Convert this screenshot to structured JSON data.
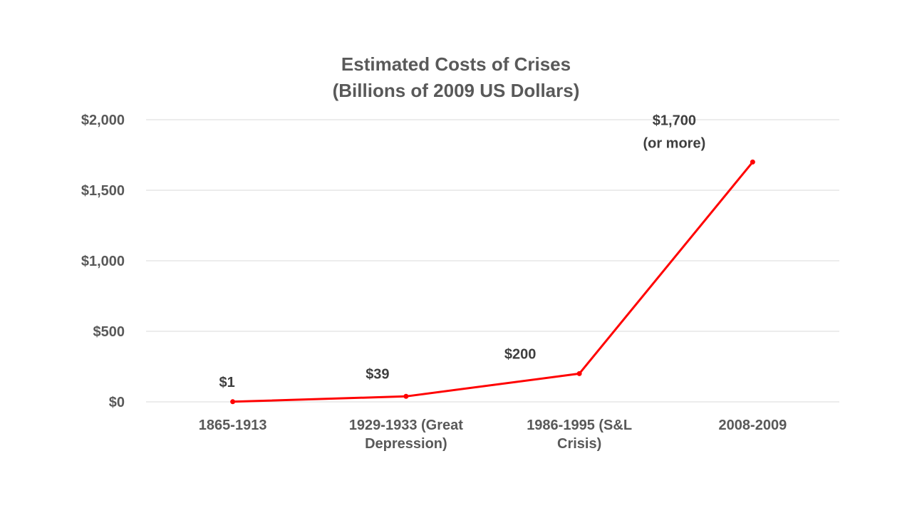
{
  "chart_data": {
    "type": "line",
    "title": [
      "Estimated Costs of Crises",
      "(Billions of 2009 US Dollars)"
    ],
    "xlabel": "",
    "ylabel": "",
    "categories": [
      [
        "1865-1913"
      ],
      [
        "1929-1933 (Great",
        "Depression)"
      ],
      [
        "1986-1995 (S&L",
        "Crisis)"
      ],
      [
        "2008-2009"
      ]
    ],
    "series": [
      {
        "values": [
          1,
          39,
          200,
          1700
        ],
        "labels": [
          [
            "$1"
          ],
          [
            "$39"
          ],
          [
            "$200"
          ],
          [
            "$1,700",
            "(or more)"
          ]
        ]
      }
    ],
    "ylim": [
      0,
      2000
    ],
    "yticks": [
      0,
      500,
      1000,
      1500,
      2000
    ],
    "ytick_labels": [
      "$0",
      "$500",
      "$1,000",
      "$1,500",
      "$2,000"
    ],
    "grid": true,
    "legend": "none",
    "colors": {
      "line": "#ff0000",
      "text": "#595959",
      "grid": "#d9d9d9"
    }
  }
}
